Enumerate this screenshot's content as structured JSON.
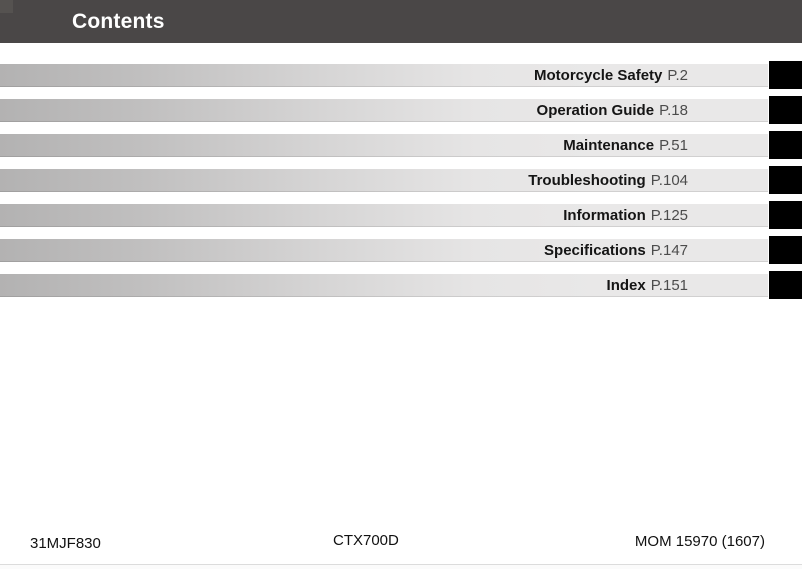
{
  "header": {
    "title": "Contents"
  },
  "toc": {
    "items": [
      {
        "label": "Motorcycle Safety",
        "page": "P.2"
      },
      {
        "label": "Operation Guide",
        "page": "P.18"
      },
      {
        "label": "Maintenance",
        "page": "P.51"
      },
      {
        "label": "Troubleshooting",
        "page": "P.104"
      },
      {
        "label": "Information",
        "page": "P.125"
      },
      {
        "label": "Specifications",
        "page": "P.147"
      },
      {
        "label": "Index",
        "page": "P.151"
      }
    ]
  },
  "footer": {
    "left": "31MJF830",
    "center": "CTX700D",
    "right": "MOM 15970 (1607)"
  },
  "colors": {
    "header_bg": "#4a4747",
    "header_corner": "#555250",
    "bar_gradient_start": "#b3b2b2",
    "bar_gradient_end": "#e9e8e8",
    "chapter_tab": "#000000",
    "label_text": "#151515",
    "page_ref_text": "#4c4c4c",
    "footer_rule": "#dcdcdc"
  }
}
